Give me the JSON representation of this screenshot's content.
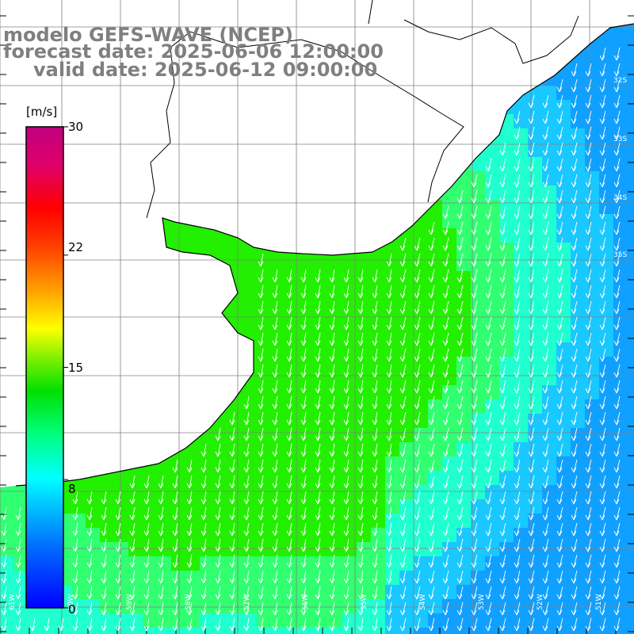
{
  "title": {
    "line1": "modelo GEFS-WAVE (NCEP)",
    "line2": "forecast date: 2025-06-06 12:00:00",
    "line3": "valid date: 2025-06-12 09:00:00"
  },
  "colorbar": {
    "unit": "[m/s]",
    "ticks": [
      "30",
      "22",
      "15",
      "8",
      "0"
    ],
    "tick_values": [
      30,
      22,
      15,
      8,
      0
    ],
    "range": [
      0,
      30
    ],
    "colors": [
      "#0000ff",
      "#0090ff",
      "#00ffff",
      "#00ff80",
      "#00e000",
      "#80f000",
      "#ffff00",
      "#ffa000",
      "#ff4000",
      "#ff0000",
      "#e0006a",
      "#c0007f"
    ]
  },
  "map": {
    "variable": "wind speed and direction",
    "field_colors": {
      "strong": "#22f000",
      "medium": "#30ff70",
      "weak": "#20ffd0",
      "calm": "#18c8ff",
      "calmest": "#10a0ff"
    },
    "land_color": "#ffffff",
    "grid_color": "#808080",
    "longitude_labels": [
      "61W",
      "60W",
      "59W",
      "58W",
      "57W",
      "56W",
      "55W",
      "54W",
      "53W",
      "52W",
      "51W"
    ],
    "latitude_labels": [
      "32S",
      "33S",
      "34S",
      "35S"
    ]
  }
}
